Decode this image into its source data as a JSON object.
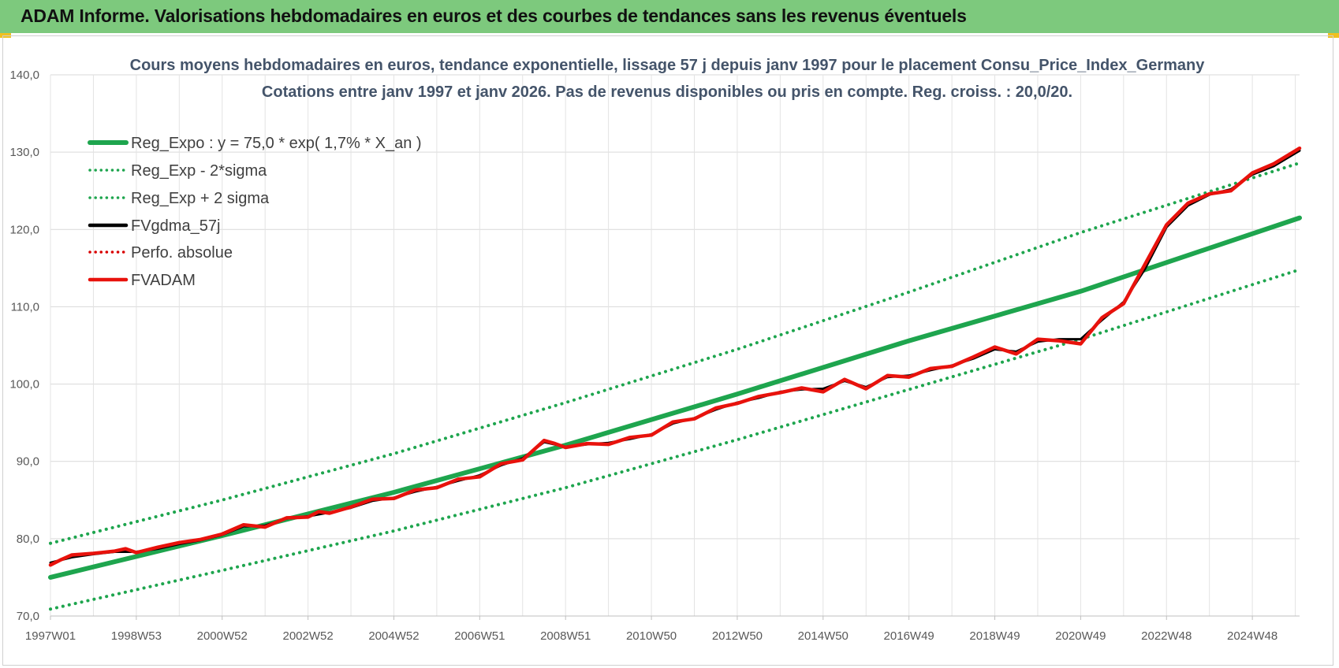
{
  "banner": {
    "title": "ADAM Informe. Valorisations hebdomadaires en euros et des courbes de tendances sans les revenus éventuels"
  },
  "colors": {
    "banner": "#7dc97d",
    "trend": "#1ea54e",
    "band": "#1ea54e",
    "smooth": "#000000",
    "perf": "#d90000",
    "adam": "#e8120c"
  },
  "chart_data": {
    "type": "line",
    "title": "Cours moyens hebdomadaires en euros, tendance exponentielle, lissage 57 j depuis janv 1997 pour le placement Consu_Price_Index_Germany",
    "subtitle": "Cotations entre janv 1997 et janv 2026. Pas de revenus disponibles ou pris en compte. Reg. croiss. : 20,0/20.",
    "xlabel": "",
    "ylabel": "",
    "x_range": [
      1997.0,
      2026.1
    ],
    "ylim": [
      70,
      140
    ],
    "y_ticks": [
      "70,0",
      "80,0",
      "90,0",
      "100,0",
      "110,0",
      "120,0",
      "130,0",
      "140,0"
    ],
    "x_ticks": [
      {
        "label": "1997W01",
        "x": 1997.0
      },
      {
        "label": "1998W53",
        "x": 1999.0
      },
      {
        "label": "2000W52",
        "x": 2001.0
      },
      {
        "label": "2002W52",
        "x": 2003.0
      },
      {
        "label": "2004W52",
        "x": 2005.0
      },
      {
        "label": "2006W51",
        "x": 2007.0
      },
      {
        "label": "2008W51",
        "x": 2009.0
      },
      {
        "label": "2010W50",
        "x": 2011.0
      },
      {
        "label": "2012W50",
        "x": 2013.0
      },
      {
        "label": "2014W50",
        "x": 2015.0
      },
      {
        "label": "2016W49",
        "x": 2017.0
      },
      {
        "label": "2018W49",
        "x": 2019.0
      },
      {
        "label": "2020W49",
        "x": 2021.0
      },
      {
        "label": "2022W48",
        "x": 2023.0
      },
      {
        "label": "2024W48",
        "x": 2025.0
      }
    ],
    "grid": true,
    "legend_position": "top-left",
    "series": [
      {
        "name": "Reg_Expo : y = 75,0 * exp( 1,7% *  X_an )",
        "style": "solid",
        "color": "#1ea54e",
        "x": [
          1997.0,
          2001.0,
          2005.0,
          2009.0,
          2013.0,
          2017.0,
          2021.0,
          2026.1
        ],
        "values": [
          75.0,
          80.4,
          86.0,
          92.1,
          98.7,
          105.6,
          112.0,
          121.5
        ]
      },
      {
        "name": "Reg_Exp - 2*sigma",
        "style": "dotted",
        "color": "#1ea54e",
        "x": [
          1997.0,
          2001.0,
          2005.0,
          2009.0,
          2013.0,
          2017.0,
          2021.0,
          2026.1
        ],
        "values": [
          70.9,
          75.9,
          81.0,
          86.6,
          92.8,
          99.3,
          105.8,
          114.8
        ]
      },
      {
        "name": "Reg_Exp + 2 sigma",
        "style": "dotted",
        "color": "#1ea54e",
        "x": [
          1997.0,
          2001.0,
          2005.0,
          2009.0,
          2013.0,
          2017.0,
          2021.0,
          2026.1
        ],
        "values": [
          79.4,
          85.0,
          91.0,
          97.6,
          104.5,
          111.9,
          119.6,
          128.6
        ]
      },
      {
        "name": "FVgdma_57j",
        "style": "solid",
        "color": "#000000",
        "x": [
          1997.0,
          1997.5,
          1998.0,
          1998.5,
          1999.0,
          1999.5,
          2000.0,
          2000.5,
          2001.0,
          2001.5,
          2002.0,
          2002.5,
          2003.0,
          2003.5,
          2004.0,
          2004.5,
          2005.0,
          2005.5,
          2006.0,
          2006.5,
          2007.0,
          2007.5,
          2008.0,
          2008.5,
          2009.0,
          2009.5,
          2010.0,
          2010.5,
          2011.0,
          2011.5,
          2012.0,
          2012.5,
          2013.0,
          2013.5,
          2014.0,
          2014.5,
          2015.0,
          2015.5,
          2016.0,
          2016.5,
          2017.0,
          2017.5,
          2018.0,
          2018.5,
          2019.0,
          2019.5,
          2020.0,
          2020.5,
          2021.0,
          2021.5,
          2022.0,
          2022.5,
          2023.0,
          2023.5,
          2024.0,
          2024.5,
          2025.0,
          2025.5,
          2026.1
        ],
        "values": [
          76.9,
          77.6,
          78.0,
          78.3,
          78.3,
          78.7,
          79.3,
          79.8,
          80.5,
          81.6,
          81.7,
          82.6,
          82.9,
          83.4,
          84.0,
          84.9,
          85.3,
          86.1,
          86.7,
          87.5,
          88.2,
          89.5,
          90.4,
          92.5,
          91.9,
          92.2,
          92.4,
          92.9,
          93.5,
          94.9,
          95.6,
          96.7,
          97.6,
          98.2,
          99.0,
          99.3,
          99.4,
          100.4,
          99.6,
          100.9,
          101.1,
          101.8,
          102.4,
          103.3,
          104.5,
          104.2,
          105.5,
          105.8,
          105.8,
          108.3,
          110.6,
          114.9,
          120.3,
          123.1,
          124.5,
          125.2,
          127.1,
          128.2,
          130.2
        ]
      },
      {
        "name": "Perfo. absolue",
        "style": "dotted",
        "color": "#d90000",
        "x": [],
        "values": []
      },
      {
        "name": "FVADAM",
        "style": "solid",
        "color": "#e8120c",
        "x": [
          1997.0,
          1997.25,
          1997.5,
          1998.0,
          1998.5,
          1998.75,
          1999.0,
          1999.5,
          2000.0,
          2000.5,
          2001.0,
          2001.5,
          2002.0,
          2002.5,
          2003.0,
          2003.25,
          2003.5,
          2004.0,
          2004.5,
          2005.0,
          2005.5,
          2006.0,
          2006.5,
          2007.0,
          2007.5,
          2008.0,
          2008.5,
          2008.75,
          2009.0,
          2009.5,
          2010.0,
          2010.5,
          2011.0,
          2011.5,
          2012.0,
          2012.5,
          2013.0,
          2013.5,
          2014.0,
          2014.5,
          2015.0,
          2015.5,
          2016.0,
          2016.5,
          2017.0,
          2017.5,
          2018.0,
          2018.5,
          2019.0,
          2019.5,
          2020.0,
          2020.5,
          2021.0,
          2021.5,
          2022.0,
          2022.5,
          2023.0,
          2023.5,
          2024.0,
          2024.5,
          2025.0,
          2025.5,
          2026.1
        ],
        "values": [
          76.6,
          77.3,
          77.9,
          78.1,
          78.4,
          78.7,
          78.2,
          78.9,
          79.5,
          79.9,
          80.6,
          81.8,
          81.5,
          82.7,
          82.8,
          83.5,
          83.3,
          84.1,
          85.1,
          85.2,
          86.3,
          86.6,
          87.7,
          88.0,
          89.7,
          90.2,
          92.7,
          92.3,
          91.8,
          92.3,
          92.2,
          93.1,
          93.4,
          95.1,
          95.5,
          96.9,
          97.5,
          98.4,
          98.9,
          99.5,
          99.0,
          100.6,
          99.4,
          101.1,
          100.9,
          102.0,
          102.3,
          103.5,
          104.8,
          103.9,
          105.8,
          105.6,
          105.2,
          108.6,
          110.4,
          115.5,
          120.6,
          123.4,
          124.6,
          125.0,
          127.3,
          128.5,
          130.5
        ]
      }
    ]
  }
}
